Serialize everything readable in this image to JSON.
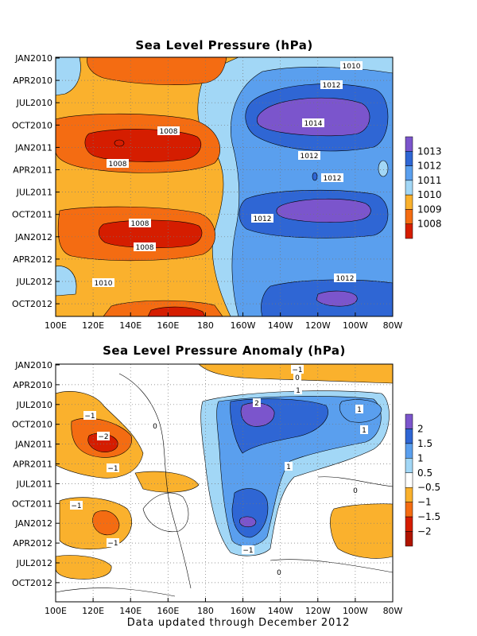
{
  "footer": "Data updated through December 2012",
  "chart_data": [
    {
      "type": "heatmap",
      "title": "Sea Level Pressure (hPa)",
      "x_ticks": [
        "100E",
        "120E",
        "140E",
        "160E",
        "180",
        "160W",
        "140W",
        "120W",
        "100W",
        "80W"
      ],
      "y_ticks": [
        "JAN2010",
        "APR2010",
        "JUL2010",
        "OCT2010",
        "JAN2011",
        "APR2011",
        "JUL2011",
        "OCT2011",
        "JAN2012",
        "APR2012",
        "JUL2012",
        "OCT2012"
      ],
      "colorbar": [
        "1008",
        "1009",
        "1010",
        "1011",
        "1012",
        "1013"
      ],
      "colorbar_colors": [
        "#d51d00",
        "#f46c12",
        "#fab12d",
        "#a2d7f6",
        "#5a9fee",
        "#2f66d4",
        "#7b55cc"
      ],
      "contour_labels": [
        "1010",
        "1012",
        "1014",
        "1008",
        "1008",
        "1012",
        "1012",
        "1008",
        "1008",
        "1012",
        "1010",
        "1012"
      ]
    },
    {
      "type": "heatmap",
      "title": "Sea Level Pressure Anomaly (hPa)",
      "x_ticks": [
        "100E",
        "120E",
        "140E",
        "160E",
        "180",
        "160W",
        "140W",
        "120W",
        "100W",
        "80W"
      ],
      "y_ticks": [
        "JAN2010",
        "APR2010",
        "JUL2010",
        "OCT2010",
        "JAN2011",
        "APR2011",
        "JUL2011",
        "OCT2011",
        "JAN2012",
        "APR2012",
        "JUL2012",
        "OCT2012"
      ],
      "colorbar": [
        "2",
        "1.5",
        "1",
        "0.5",
        "−0.5",
        "−1",
        "−1.5",
        "−2"
      ],
      "colorbar_colors": [
        "#7b55cc",
        "#2f66d4",
        "#5a9fee",
        "#a2d7f6",
        "#ffffff",
        "#fab12d",
        "#f46c12",
        "#d51d00",
        "#b01400"
      ],
      "contour_labels": [
        "−1",
        "0",
        "1",
        "2",
        "1",
        "1",
        "−1",
        "0",
        "−2",
        "−1",
        "1",
        "0",
        "−1",
        "−1",
        "−1",
        "0"
      ]
    }
  ]
}
